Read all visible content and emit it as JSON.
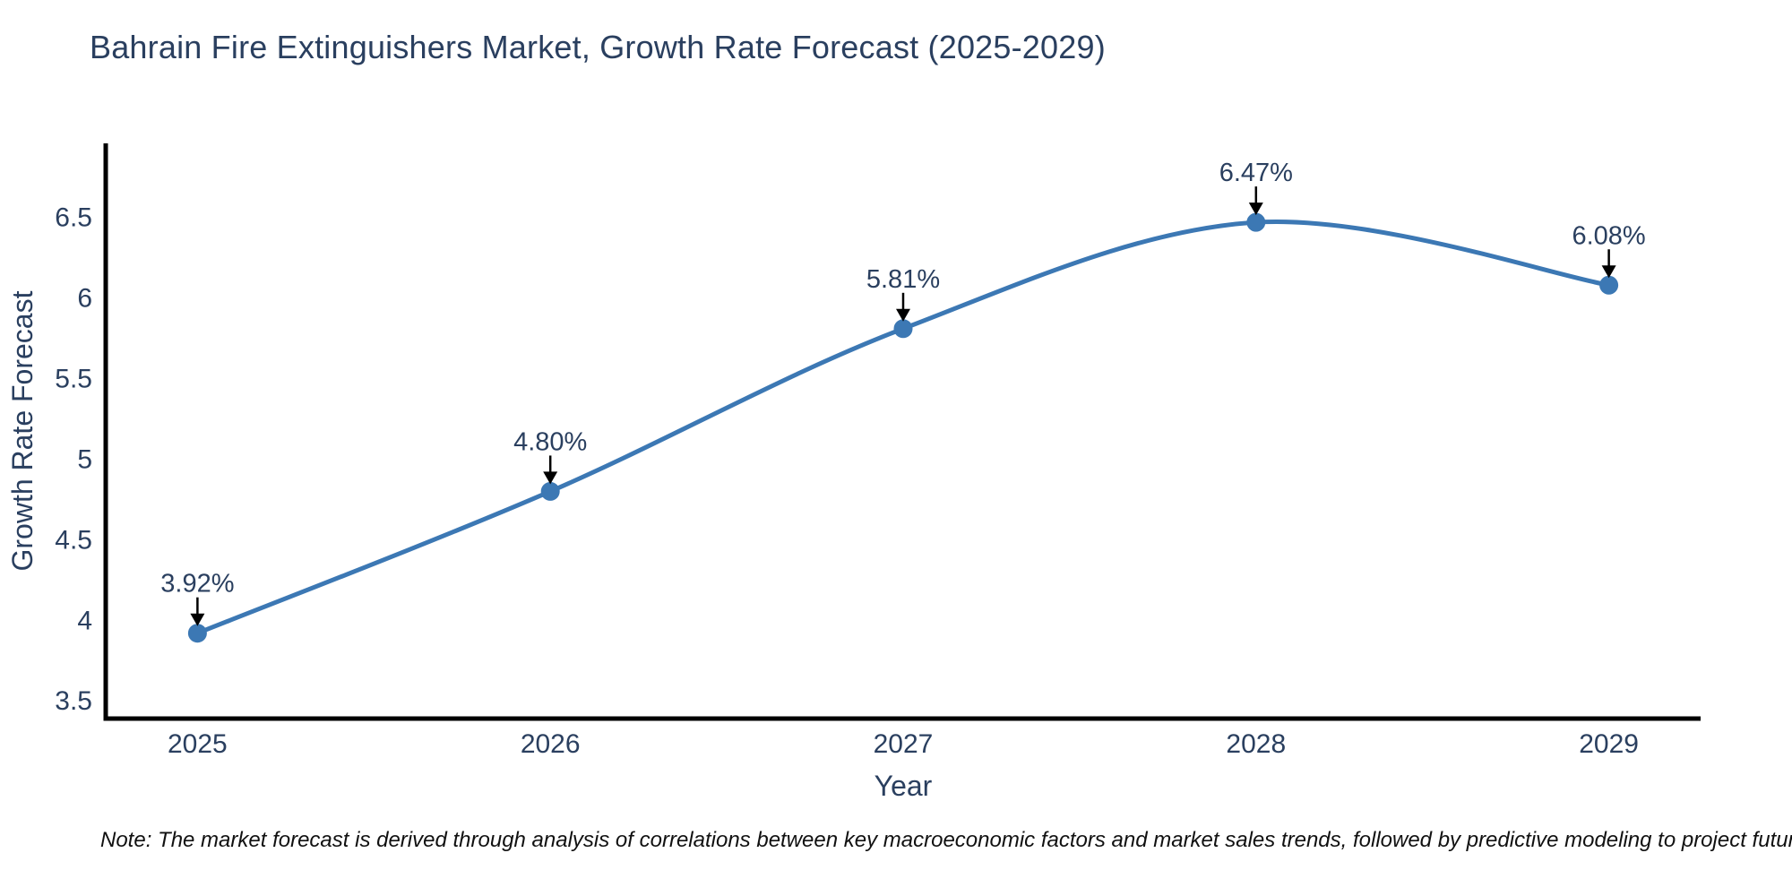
{
  "page": {
    "note": "Note: The market forecast is derived through analysis of correlations between key macroeconomic factors and market sales trends, followed by predictive modeling to project future sales"
  },
  "chart_data": {
    "type": "line",
    "title": "Bahrain Fire Extinguishers Market, Growth Rate Forecast (2025-2029)",
    "x": [
      2025,
      2026,
      2027,
      2028,
      2029
    ],
    "categories": [
      "2025",
      "2026",
      "2027",
      "2028",
      "2029"
    ],
    "values": [
      3.92,
      4.8,
      5.81,
      6.47,
      6.08
    ],
    "point_labels": [
      "3.92%",
      "4.80%",
      "5.81%",
      "6.47%",
      "6.08%"
    ],
    "xlabel": "Year",
    "ylabel": "Growth Rate Forecast",
    "xlim": [
      2024.74,
      2029.26
    ],
    "ylim": [
      3.39,
      6.96
    ],
    "yticks": [
      3.5,
      4,
      4.5,
      5,
      5.5,
      6,
      6.5
    ],
    "ytick_labels": [
      "3.5",
      "4",
      "4.5",
      "5",
      "5.5",
      "6",
      "6.5"
    ],
    "grid": false,
    "legend": "none",
    "line_shape": "spline",
    "marker": "circle",
    "annotation_arrows": "down",
    "colors": {
      "line": "#3c78b4",
      "marker": "#3c78b4",
      "axis": "#000000",
      "arrow": "#000000",
      "text": "#2a3f5f",
      "note_text": "#111111",
      "background": "#ffffff"
    }
  }
}
